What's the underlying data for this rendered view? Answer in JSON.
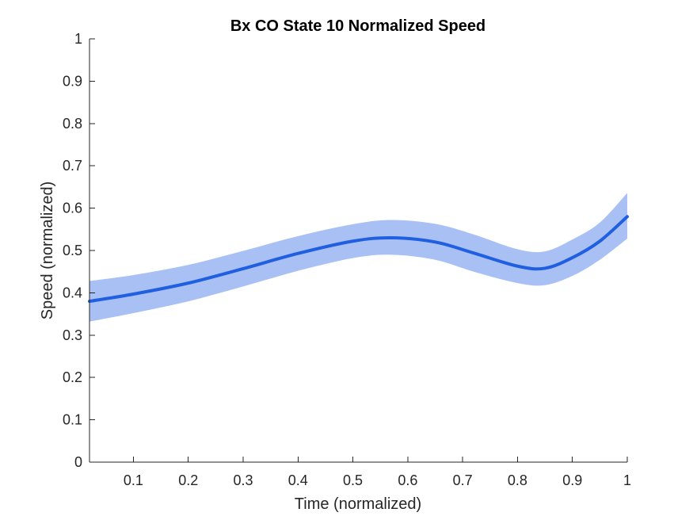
{
  "chart_data": {
    "type": "line",
    "title": "Bx  CO State 10 Normalized Speed",
    "xlabel": "Time (normalized)",
    "ylabel": "Speed (normalized)",
    "xlim": [
      0.02,
      1.0
    ],
    "ylim": [
      0,
      1
    ],
    "xticks": [
      0.1,
      0.2,
      0.3,
      0.4,
      0.5,
      0.6,
      0.7,
      0.8,
      0.9,
      1
    ],
    "xtick_labels": [
      "0.1",
      "0.2",
      "0.3",
      "0.4",
      "0.5",
      "0.6",
      "0.7",
      "0.8",
      "0.9",
      "1"
    ],
    "yticks": [
      0,
      0.1,
      0.2,
      0.3,
      0.4,
      0.5,
      0.6,
      0.7,
      0.8,
      0.9,
      1
    ],
    "ytick_labels": [
      "0",
      "0.1",
      "0.2",
      "0.3",
      "0.4",
      "0.5",
      "0.6",
      "0.7",
      "0.8",
      "0.9",
      "1"
    ],
    "grid": false,
    "line_color": "#1f5fe0",
    "band_color": "#a9c0f5",
    "series": [
      {
        "x": [
          0.02,
          0.1,
          0.2,
          0.3,
          0.4,
          0.5,
          0.57,
          0.65,
          0.72,
          0.8,
          0.85,
          0.9,
          0.95,
          1.0
        ],
        "y": [
          0.38,
          0.397,
          0.423,
          0.457,
          0.493,
          0.522,
          0.53,
          0.52,
          0.494,
          0.463,
          0.458,
          0.483,
          0.522,
          0.58
        ],
        "lower": [
          0.332,
          0.352,
          0.38,
          0.415,
          0.452,
          0.482,
          0.49,
          0.478,
          0.45,
          0.423,
          0.418,
          0.44,
          0.478,
          0.528
        ],
        "upper": [
          0.428,
          0.442,
          0.466,
          0.499,
          0.534,
          0.562,
          0.572,
          0.563,
          0.538,
          0.503,
          0.498,
          0.526,
          0.566,
          0.636
        ]
      }
    ]
  }
}
